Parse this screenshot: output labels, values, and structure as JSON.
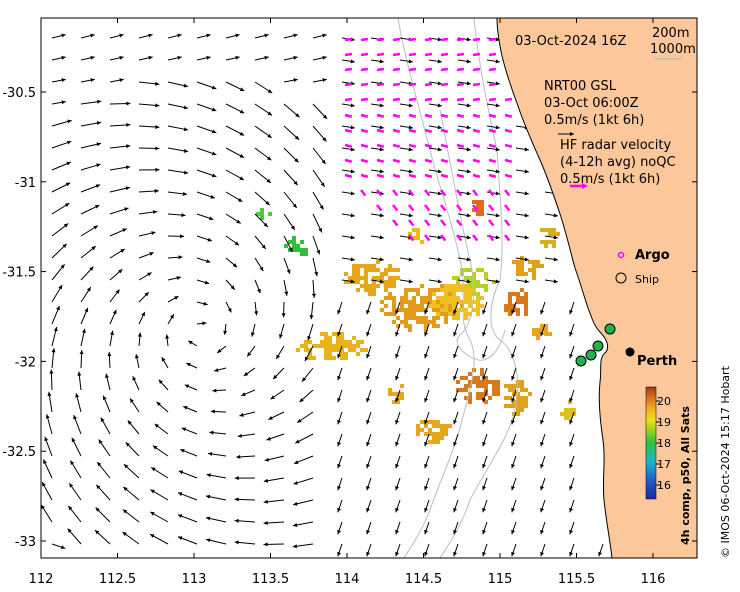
{
  "axes": {
    "x_ticks": [
      "112",
      "112.5",
      "113",
      "113.5",
      "114",
      "114.5",
      "115",
      "115.5",
      "116"
    ],
    "y_ticks": [
      "-30.5",
      "-31",
      "-31.5",
      "-32",
      "-32.5",
      "-33"
    ]
  },
  "legend": {
    "date": "03-Oct-2024 16Z",
    "contour_1": "200m",
    "contour_2": "1000m",
    "model_line1": "NRT00 GSL",
    "model_line2": "03-Oct 06:00Z",
    "model_scale": "0.5m/s (1kt 6h)",
    "hf_line1": "HF radar velocity",
    "hf_line2": "(4-12h avg) noQC",
    "hf_scale": "0.5m/s (1kt 6h)",
    "argo": "Argo",
    "ship": "Ship",
    "place": "Perth"
  },
  "colorbar": {
    "ticks": [
      "20",
      "19",
      "18",
      "17",
      "16"
    ],
    "title": "4h comp, p50, All Sats"
  },
  "credit": "© IMOS 06-Oct-2024 15:17 Hobart",
  "colors": {
    "land": "#fcc79a",
    "hf_arrow": "#ff00ff",
    "model_arrow": "#000000",
    "argo": "#ff00ff",
    "float_marker": "#22b14c"
  }
}
